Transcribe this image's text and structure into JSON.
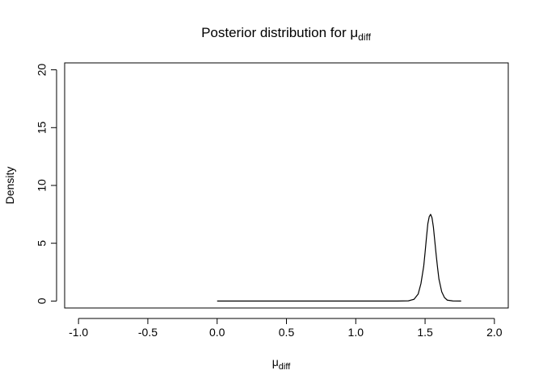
{
  "chart_data": {
    "type": "line",
    "title": "Posterior distribution for μ",
    "title_subscript": "diff",
    "xlabel": "μ",
    "xlabel_subscript": "diff",
    "ylabel": "Density",
    "xlim": [
      -1.1,
      2.1
    ],
    "ylim": [
      -0.6,
      20.6
    ],
    "xticks": [
      -1.0,
      -0.5,
      0.0,
      0.5,
      1.0,
      1.5,
      2.0
    ],
    "xtick_labels": [
      "-1.0",
      "-0.5",
      "0.0",
      "0.5",
      "1.0",
      "1.5",
      "2.0"
    ],
    "yticks": [
      0,
      5,
      10,
      15,
      20
    ],
    "ytick_labels": [
      "0",
      "5",
      "10",
      "15",
      "20"
    ],
    "grid": false,
    "series": [
      {
        "x": [
          0.0,
          0.5,
          1.0,
          1.3,
          1.38,
          1.42,
          1.45,
          1.47,
          1.49,
          1.5,
          1.51,
          1.52,
          1.53,
          1.54,
          1.55,
          1.56,
          1.57,
          1.58,
          1.59,
          1.6,
          1.62,
          1.64,
          1.66,
          1.7,
          1.76
        ],
        "y": [
          0.0,
          0.0,
          0.0,
          0.0,
          0.02,
          0.15,
          0.6,
          1.5,
          3.0,
          4.2,
          5.5,
          6.7,
          7.3,
          7.5,
          7.2,
          6.4,
          5.2,
          4.0,
          2.9,
          1.9,
          0.8,
          0.3,
          0.08,
          0.01,
          0.0
        ]
      }
    ]
  }
}
